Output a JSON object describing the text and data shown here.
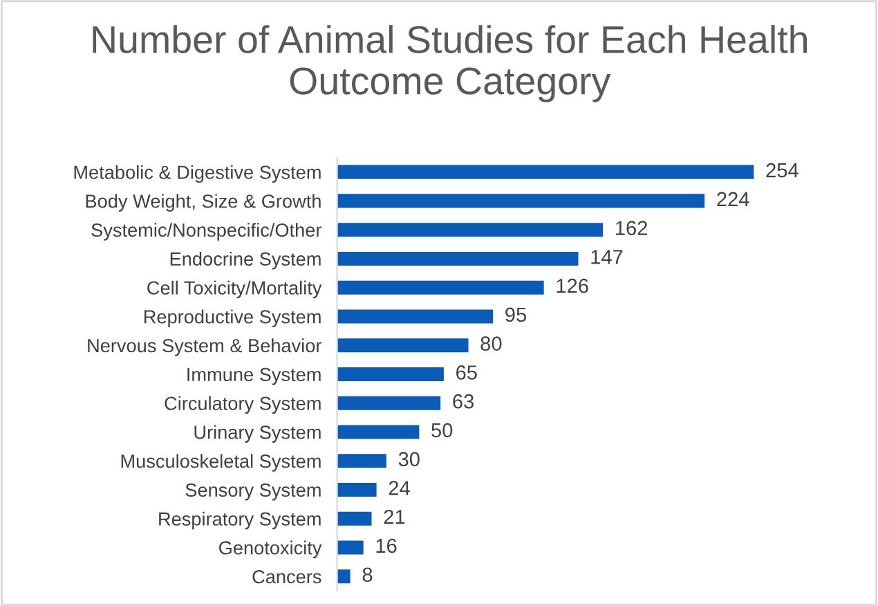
{
  "chart_data": {
    "type": "bar",
    "orientation": "horizontal",
    "title": "Number of Animal Studies for Each Health Outcome Category",
    "categories": [
      "Metabolic & Digestive System",
      "Body Weight, Size & Growth",
      "Systemic/Nonspecific/Other",
      "Endocrine System",
      "Cell Toxicity/Mortality",
      "Reproductive System",
      "Nervous System & Behavior",
      "Immune System",
      "Circulatory System",
      "Urinary System",
      "Musculoskeletal System",
      "Sensory System",
      "Respiratory System",
      "Genotoxicity",
      "Cancers"
    ],
    "values": [
      254,
      224,
      162,
      147,
      126,
      95,
      80,
      65,
      63,
      50,
      30,
      24,
      21,
      16,
      8
    ],
    "color": "#0a5cb8",
    "data_labels": true,
    "grid": false,
    "legend": false
  }
}
